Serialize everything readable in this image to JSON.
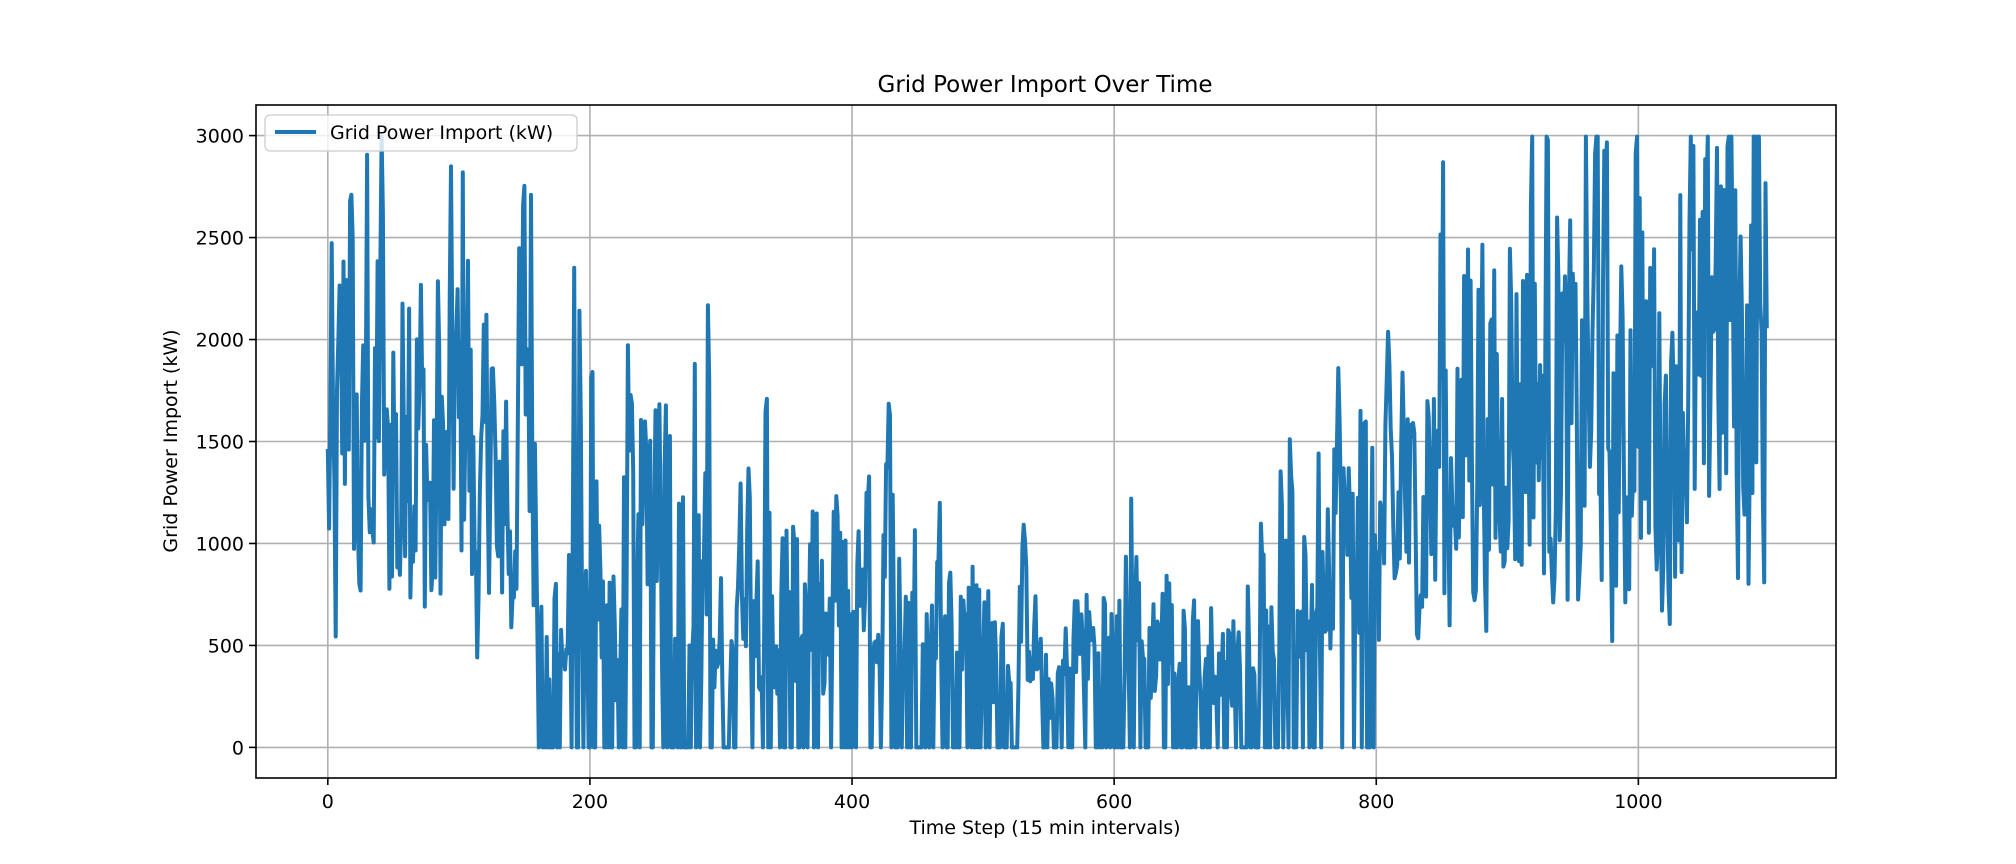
{
  "chart_data": {
    "type": "line",
    "title": "Grid Power Import Over Time",
    "xlabel": "Time Step (15 min intervals)",
    "ylabel": "Grid Power Import (kW)",
    "xlim": [
      -54.8,
      1150.8
    ],
    "ylim": [
      -150,
      3150
    ],
    "xticks": [
      0,
      200,
      400,
      600,
      800,
      1000
    ],
    "yticks": [
      0,
      500,
      1000,
      1500,
      2000,
      2500,
      3000
    ],
    "grid": true,
    "legend_position": "top-left",
    "series": [
      {
        "name": "Grid Power Import (kW)",
        "color": "#1f77b4",
        "x_start": 0,
        "x_step": 1,
        "anchors": [
          [
            0,
            1250
          ],
          [
            3,
            1600
          ],
          [
            6,
            850
          ],
          [
            8,
            1620
          ],
          [
            12,
            1800
          ],
          [
            15,
            2260
          ],
          [
            20,
            1700
          ],
          [
            25,
            900
          ],
          [
            30,
            2150
          ],
          [
            35,
            1000
          ],
          [
            40,
            2440
          ],
          [
            45,
            1200
          ],
          [
            50,
            1600
          ],
          [
            55,
            950
          ],
          [
            60,
            2230
          ],
          [
            65,
            1200
          ],
          [
            70,
            1700
          ],
          [
            75,
            1400
          ],
          [
            80,
            900
          ],
          [
            85,
            1750
          ],
          [
            90,
            1100
          ],
          [
            95,
            2030
          ],
          [
            100,
            1500
          ],
          [
            105,
            2180
          ],
          [
            110,
            1200
          ],
          [
            115,
            900
          ],
          [
            120,
            1450
          ],
          [
            125,
            1800
          ],
          [
            130,
            800
          ],
          [
            135,
            1600
          ],
          [
            140,
            700
          ],
          [
            145,
            1500
          ],
          [
            150,
            2070
          ],
          [
            155,
            1900
          ],
          [
            160,
            950
          ],
          [
            165,
            300
          ],
          [
            170,
            500
          ],
          [
            175,
            850
          ],
          [
            180,
            400
          ],
          [
            185,
            700
          ],
          [
            190,
            2180
          ],
          [
            195,
            300
          ],
          [
            200,
            1450
          ],
          [
            205,
            900
          ],
          [
            210,
            600
          ],
          [
            215,
            1000
          ],
          [
            220,
            400
          ],
          [
            225,
            700
          ],
          [
            230,
            1500
          ],
          [
            240,
            1000
          ],
          [
            250,
            1850
          ],
          [
            255,
            600
          ],
          [
            260,
            1600
          ],
          [
            265,
            700
          ],
          [
            270,
            1160
          ],
          [
            275,
            400
          ],
          [
            280,
            1270
          ],
          [
            285,
            600
          ],
          [
            290,
            1530
          ],
          [
            295,
            300
          ],
          [
            300,
            550
          ],
          [
            310,
            700
          ],
          [
            320,
            1060
          ],
          [
            330,
            600
          ],
          [
            335,
            1200
          ],
          [
            340,
            400
          ],
          [
            350,
            900
          ],
          [
            360,
            600
          ],
          [
            370,
            850
          ],
          [
            380,
            500
          ],
          [
            390,
            950
          ],
          [
            400,
            600
          ],
          [
            410,
            1040
          ],
          [
            420,
            500
          ],
          [
            430,
            1350
          ],
          [
            440,
            600
          ],
          [
            450,
            750
          ],
          [
            460,
            450
          ],
          [
            470,
            1010
          ],
          [
            480,
            350
          ],
          [
            490,
            900
          ],
          [
            500,
            550
          ],
          [
            510,
            450
          ],
          [
            520,
            380
          ],
          [
            530,
            750
          ],
          [
            540,
            500
          ],
          [
            550,
            250
          ],
          [
            560,
            350
          ],
          [
            570,
            520
          ],
          [
            580,
            500
          ],
          [
            590,
            550
          ],
          [
            600,
            450
          ],
          [
            605,
            500
          ],
          [
            610,
            650
          ],
          [
            615,
            1110
          ],
          [
            620,
            400
          ],
          [
            630,
            500
          ],
          [
            640,
            600
          ],
          [
            650,
            400
          ],
          [
            660,
            550
          ],
          [
            670,
            450
          ],
          [
            680,
            500
          ],
          [
            690,
            420
          ],
          [
            700,
            450
          ],
          [
            705,
            900
          ],
          [
            710,
            550
          ],
          [
            715,
            1130
          ],
          [
            720,
            700
          ],
          [
            725,
            1100
          ],
          [
            730,
            650
          ],
          [
            735,
            1060
          ],
          [
            740,
            700
          ],
          [
            745,
            900
          ],
          [
            750,
            750
          ],
          [
            755,
            1060
          ],
          [
            760,
            800
          ],
          [
            770,
            1350
          ],
          [
            780,
            900
          ],
          [
            790,
            1300
          ],
          [
            800,
            1000
          ],
          [
            805,
            1000
          ],
          [
            810,
            1400
          ],
          [
            815,
            800
          ],
          [
            820,
            1550
          ],
          [
            825,
            1050
          ],
          [
            830,
            1300
          ],
          [
            835,
            900
          ],
          [
            840,
            1450
          ],
          [
            845,
            1100
          ],
          [
            850,
            2090
          ],
          [
            855,
            1000
          ],
          [
            860,
            1600
          ],
          [
            865,
            1200
          ],
          [
            870,
            2060
          ],
          [
            875,
            1150
          ],
          [
            880,
            1900
          ],
          [
            885,
            1100
          ],
          [
            890,
            1750
          ],
          [
            895,
            1200
          ],
          [
            900,
            1900
          ],
          [
            905,
            1600
          ],
          [
            910,
            1500
          ],
          [
            915,
            1800
          ],
          [
            920,
            2280
          ],
          [
            925,
            1300
          ],
          [
            930,
            2200
          ],
          [
            935,
            1200
          ],
          [
            940,
            2060
          ],
          [
            945,
            1500
          ],
          [
            950,
            1800
          ],
          [
            955,
            1100
          ],
          [
            960,
            2060
          ],
          [
            965,
            1500
          ],
          [
            968,
            2990
          ],
          [
            972,
            1400
          ],
          [
            975,
            2200
          ],
          [
            980,
            1100
          ],
          [
            985,
            1800
          ],
          [
            990,
            1200
          ],
          [
            995,
            1700
          ],
          [
            1000,
            2560
          ],
          [
            1005,
            1300
          ],
          [
            1010,
            2040
          ],
          [
            1015,
            1400
          ],
          [
            1020,
            1500
          ],
          [
            1025,
            1300
          ],
          [
            1030,
            2200
          ],
          [
            1035,
            1500
          ],
          [
            1040,
            2200
          ],
          [
            1045,
            1700
          ],
          [
            1050,
            1800
          ],
          [
            1055,
            2300
          ],
          [
            1060,
            2400
          ],
          [
            1065,
            1800
          ],
          [
            1070,
            2760
          ],
          [
            1075,
            1600
          ],
          [
            1080,
            2100
          ],
          [
            1085,
            1500
          ],
          [
            1090,
            2980
          ],
          [
            1095,
            1400
          ],
          [
            1098,
            2080
          ]
        ]
      }
    ]
  }
}
